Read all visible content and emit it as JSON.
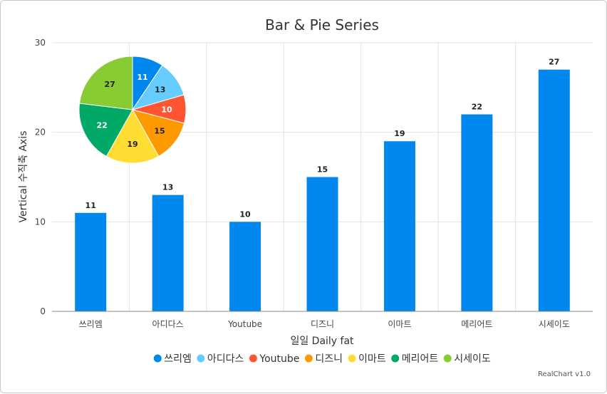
{
  "chart_data": {
    "type": "bar",
    "title": "Bar & Pie Series",
    "xlabel": "일일 Daily fat",
    "ylabel": "Vertical 수직축 Axis",
    "ylim": [
      0,
      30
    ],
    "yticks": [
      0,
      10,
      20,
      30
    ],
    "grid": true,
    "legend_position": "bottom",
    "categories": [
      "쓰리엠",
      "아디다스",
      "Youtube",
      "디즈니",
      "이마트",
      "메리어트",
      "시세이도"
    ],
    "bar_series": {
      "values": [
        11,
        13,
        10,
        15,
        19,
        22,
        27
      ],
      "color": "#0088ee"
    },
    "pie_series": {
      "type": "pie",
      "values": [
        11,
        13,
        10,
        15,
        19,
        22,
        27
      ],
      "colors": [
        "#0088ee",
        "#66ccff",
        "#ff5533",
        "#ff9900",
        "#ffdd33",
        "#00aa66",
        "#88cc33"
      ],
      "label_colors": [
        "#ffffff",
        "#222222",
        "#ffffff",
        "#222222",
        "#222222",
        "#ffffff",
        "#222222"
      ]
    }
  },
  "credits": "RealChart v1.0"
}
